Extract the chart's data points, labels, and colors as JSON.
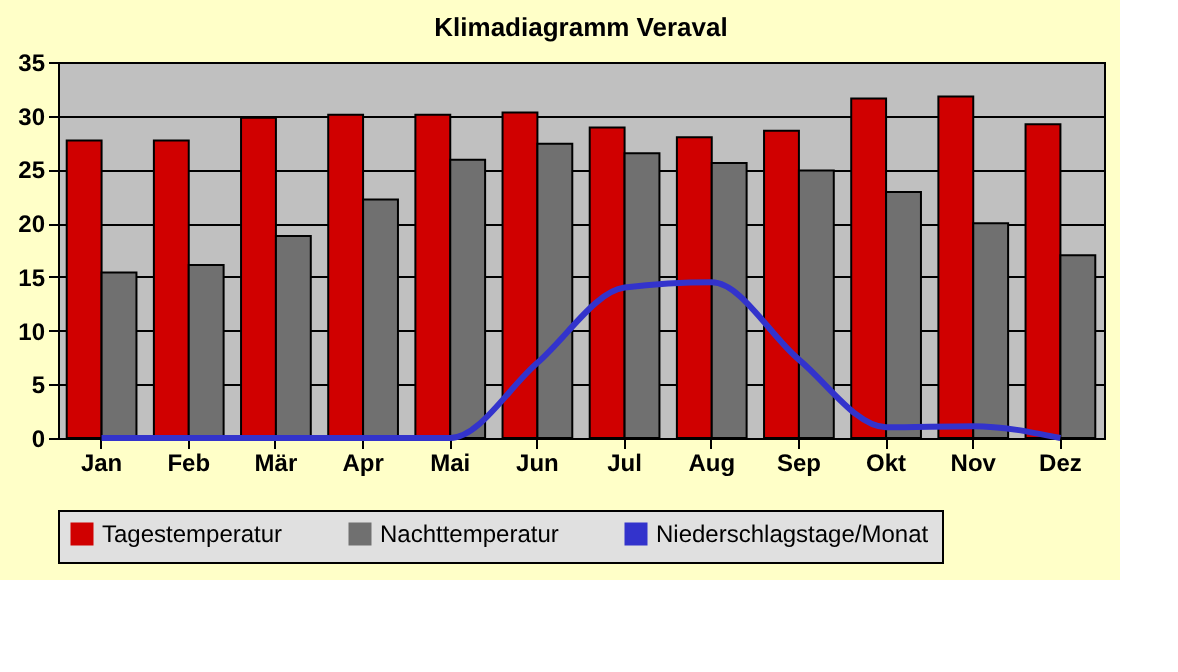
{
  "chart_data": {
    "type": "bar",
    "title": "Klimadiagramm Veraval",
    "categories": [
      "Jan",
      "Feb",
      "Mär",
      "Apr",
      "Mai",
      "Jun",
      "Jul",
      "Aug",
      "Sep",
      "Okt",
      "Nov",
      "Dez"
    ],
    "series": [
      {
        "name": "Tagestemperatur",
        "color": "#d00000",
        "values": [
          27.7,
          27.7,
          29.8,
          30.1,
          30.1,
          30.3,
          28.9,
          28.0,
          28.6,
          31.6,
          31.8,
          29.2
        ]
      },
      {
        "name": "Nachttemperatur",
        "color": "#707070",
        "values": [
          15.4,
          16.1,
          18.8,
          22.2,
          25.9,
          27.4,
          26.5,
          25.6,
          24.9,
          22.9,
          20.0,
          17.0
        ]
      },
      {
        "name": "Niederschlagstage/Monat",
        "type": "line",
        "color": "#3333cc",
        "values": [
          0,
          0,
          0,
          0,
          0,
          7,
          14,
          14.5,
          7.3,
          1,
          1.1,
          0
        ]
      }
    ],
    "ylim": [
      0,
      35
    ],
    "yticks": [
      0,
      5,
      10,
      15,
      20,
      25,
      30,
      35
    ],
    "grid": "y",
    "legend": "bottom"
  }
}
